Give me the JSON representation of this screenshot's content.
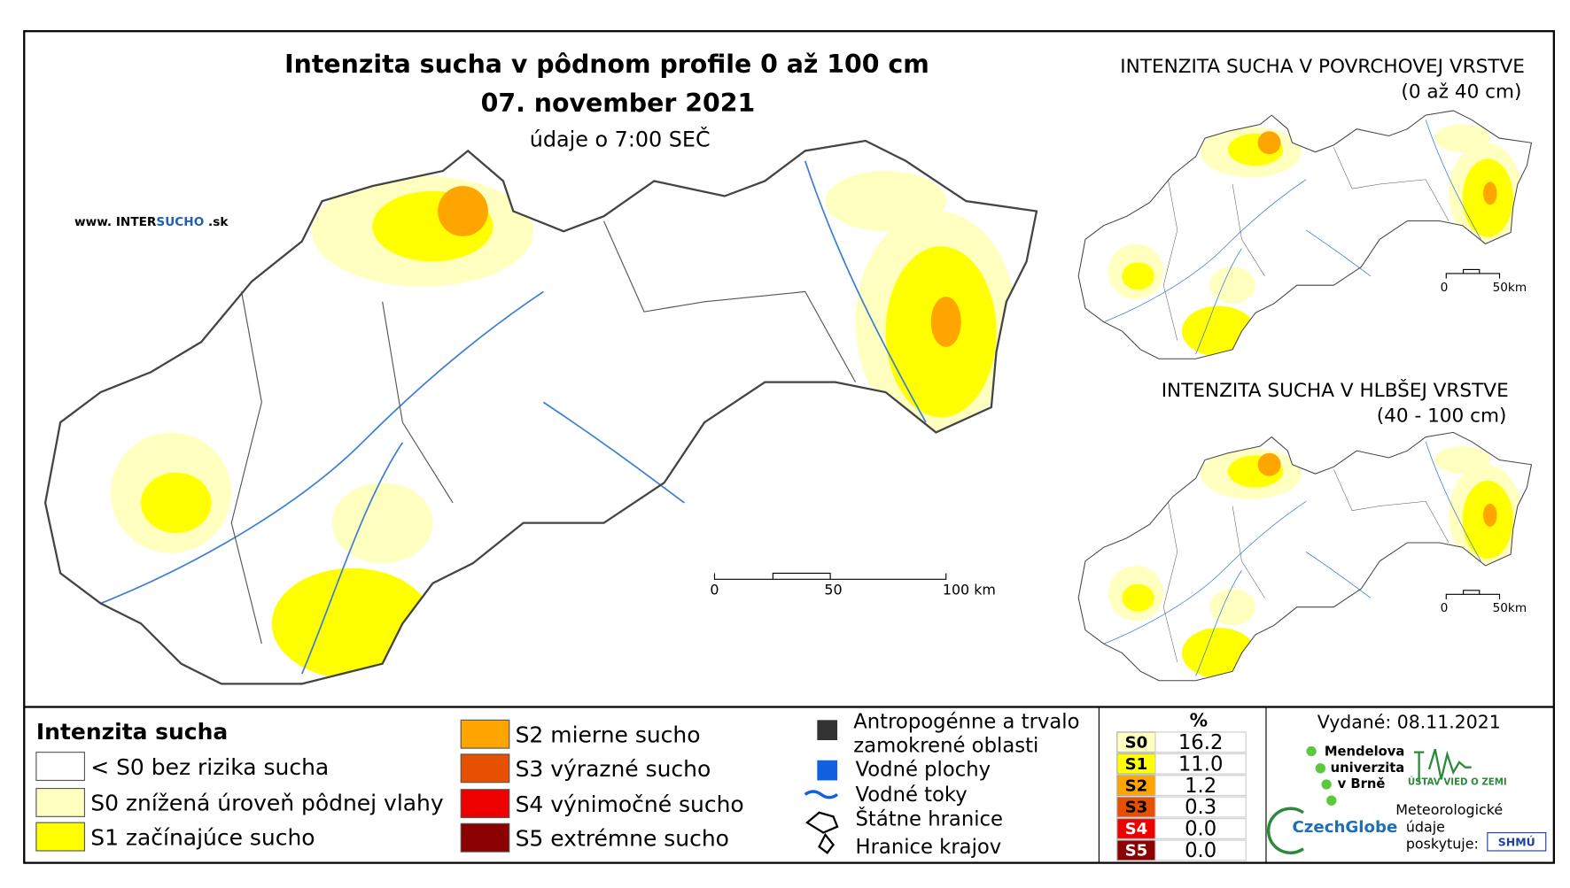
{
  "header": {
    "title": "Intenzita sucha v pôdnom profile 0 až 100 cm",
    "date": "07. november 2021",
    "subtitle": "údaje o 7:00 SEČ",
    "website": {
      "prefix": "www. INTER",
      "brand": "SUCHO",
      "suffix": " .sk"
    }
  },
  "main_scale": {
    "labels": [
      "0",
      "50",
      "100 km"
    ]
  },
  "insets": [
    {
      "title": "INTENZITA SUCHA V POVRCHOVEJ VRSTVE",
      "range": "(0 až 40 cm)",
      "scale": [
        "0",
        "50km"
      ]
    },
    {
      "title": "INTENZITA SUCHA V HLBŠEJ VRSTVE",
      "range": "(40 - 100 cm)",
      "scale": [
        "0",
        "50km"
      ]
    }
  ],
  "legend": {
    "title": "Intenzita sucha",
    "classes": [
      {
        "label": "< S0 bez rizika sucha",
        "color": "#ffffff"
      },
      {
        "label": "S0 znížená úroveň pôdnej vlahy",
        "color": "#ffffc0"
      },
      {
        "label": "S1 začínajúce sucho",
        "color": "#ffff00"
      },
      {
        "label": "S2 mierne sucho",
        "color": "#ffa500"
      },
      {
        "label": "S3 výrazné sucho",
        "color": "#e65000"
      },
      {
        "label": "S4 výnimočné sucho",
        "color": "#ee0000"
      },
      {
        "label": "S5 extrémne sucho",
        "color": "#8b0000"
      }
    ],
    "features": [
      "Antropogénne a trvalo zamokrené oblasti",
      "Vodné plochy",
      "Vodné toky",
      "Štátne hranice",
      "Hranice krajov"
    ]
  },
  "stats": {
    "header": "%",
    "rows": [
      [
        "S0",
        "16.2"
      ],
      [
        "S1",
        "11.0"
      ],
      [
        "S2",
        "1.2"
      ],
      [
        "S3",
        "0.3"
      ],
      [
        "S4",
        "0.0"
      ],
      [
        "S5",
        "0.0"
      ]
    ]
  },
  "issued": "Vydané: 08.11.2021",
  "logos": {
    "mendel": [
      "Mendelova",
      "univerzita",
      "v Brně"
    ],
    "czechglobe": "CzechGlobe",
    "ustav": "ÚSTAV VIED O ZEMI",
    "meteo": [
      "Meteorologické",
      "údaje",
      "poskytuje:"
    ],
    "shmu": "SHMÚ"
  }
}
